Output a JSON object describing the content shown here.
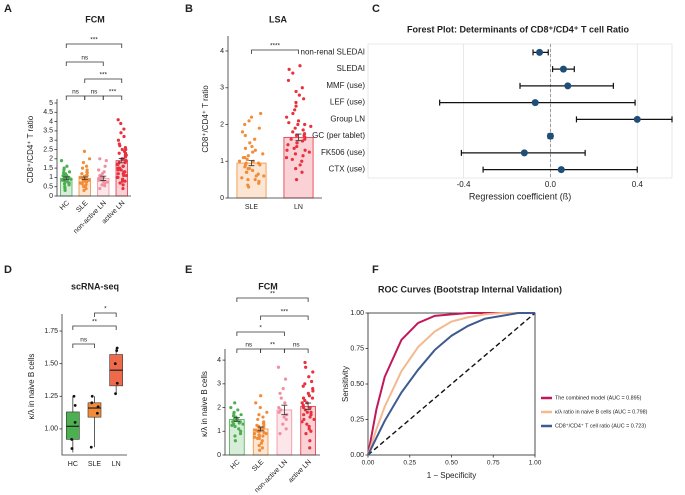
{
  "chart_data": [
    {
      "type": "bar_dot",
      "panel": "A",
      "title": "FCM",
      "ylabel": "CD8⁺/CD4⁺ T ratio",
      "categories": [
        "HC",
        "SLE",
        "non-active LN",
        "active LN"
      ],
      "colors": [
        "#4caf50",
        "#f28c38",
        "#f08fa0",
        "#e8303e"
      ],
      "values": [
        0.95,
        0.95,
        0.95,
        1.9
      ],
      "errors": [
        0.08,
        0.07,
        0.12,
        0.12
      ],
      "points": [
        [
          0.3,
          0.5,
          0.6,
          0.7,
          0.75,
          0.8,
          0.85,
          0.9,
          0.95,
          1.0,
          1.0,
          1.05,
          1.1,
          1.15,
          1.2,
          1.25,
          1.3,
          1.4,
          1.5,
          1.6,
          1.9,
          0.65,
          0.9,
          1.1,
          0.4
        ],
        [
          0.3,
          0.4,
          0.5,
          0.55,
          0.6,
          0.65,
          0.7,
          0.75,
          0.8,
          0.85,
          0.9,
          0.9,
          0.95,
          1.0,
          1.0,
          1.05,
          1.1,
          1.1,
          1.2,
          1.25,
          1.3,
          1.4,
          1.5,
          1.6,
          1.8,
          2.0,
          2.4,
          0.7,
          0.8,
          1.0
        ],
        [
          0.4,
          0.55,
          0.6,
          0.7,
          0.8,
          0.85,
          0.9,
          0.95,
          1.0,
          1.05,
          1.1,
          1.2,
          1.3,
          1.4,
          1.6,
          1.9,
          2.0,
          0.75
        ],
        [
          0.4,
          0.6,
          0.7,
          0.8,
          0.9,
          1.0,
          1.1,
          1.2,
          1.3,
          1.4,
          1.5,
          1.5,
          1.6,
          1.7,
          1.7,
          1.8,
          1.9,
          2.0,
          2.0,
          2.1,
          2.2,
          2.3,
          2.4,
          2.5,
          2.6,
          2.7,
          2.8,
          3.0,
          3.2,
          3.4,
          3.6,
          3.9,
          4.1,
          1.0,
          1.2,
          1.4,
          1.6,
          1.8,
          2.2,
          2.5,
          0.8,
          1.1,
          1.3,
          1.9,
          2.3
        ]
      ],
      "ylim": [
        0,
        5
      ],
      "yticks": [
        0,
        0.5,
        1,
        1.5,
        2,
        2.5,
        3,
        3.5,
        4,
        4.5,
        5
      ],
      "significance": [
        "***",
        "ns",
        "***",
        "ns",
        "ns",
        "***"
      ]
    },
    {
      "type": "bar_dot",
      "panel": "B",
      "title": "LSA",
      "ylabel": "CD8⁺/CD4⁺ T ratio",
      "categories": [
        "SLE",
        "LN"
      ],
      "colors": [
        "#f28c38",
        "#e8303e"
      ],
      "values": [
        0.95,
        1.65
      ],
      "errors": [
        0.07,
        0.09
      ],
      "points": [
        [
          0.3,
          0.35,
          0.4,
          0.45,
          0.5,
          0.5,
          0.55,
          0.6,
          0.6,
          0.65,
          0.7,
          0.7,
          0.75,
          0.8,
          0.8,
          0.85,
          0.9,
          0.9,
          0.95,
          1.0,
          1.0,
          1.05,
          1.1,
          1.1,
          1.15,
          1.2,
          1.25,
          1.3,
          1.35,
          1.4,
          1.5,
          1.6,
          1.7,
          1.8,
          1.9,
          2.0,
          2.1,
          2.2,
          2.3,
          0.95
        ],
        [
          0.5,
          0.7,
          0.8,
          0.9,
          1.0,
          1.05,
          1.1,
          1.15,
          1.2,
          1.25,
          1.3,
          1.35,
          1.4,
          1.45,
          1.5,
          1.5,
          1.55,
          1.6,
          1.6,
          1.65,
          1.7,
          1.75,
          1.8,
          1.85,
          1.9,
          1.95,
          2.0,
          2.05,
          2.1,
          2.2,
          2.3,
          2.4,
          2.5,
          2.6,
          2.7,
          2.8,
          2.9,
          3.0,
          3.2,
          3.4,
          3.5,
          3.6,
          1.3,
          1.7,
          2.0
        ]
      ],
      "ylim": [
        0,
        4.3
      ],
      "yticks": [
        0,
        1,
        2,
        3,
        4
      ],
      "significance": [
        "****"
      ]
    },
    {
      "type": "forest",
      "panel": "C",
      "title": "Forest Plot: Determinants of CD8⁺/CD4⁺ T cell Ratio",
      "xlabel": "Regression coefficient (ß)",
      "categories": [
        "non-renal SLEDAI",
        "SLEDAI",
        "MMF (use)",
        "LEF (use)",
        "Group LN",
        "GC (per tablet)",
        "FK506 (use)",
        "CTX (use)"
      ],
      "values": [
        -0.05,
        0.06,
        0.08,
        -0.07,
        0.4,
        0.0,
        -0.12,
        0.05
      ],
      "ci_low": [
        -0.08,
        0.01,
        -0.14,
        -0.51,
        0.12,
        -0.01,
        -0.41,
        -0.31
      ],
      "ci_high": [
        -0.01,
        0.11,
        0.29,
        0.39,
        0.56,
        0.01,
        0.16,
        0.4
      ],
      "color": "#1f4e79",
      "xlim": [
        -0.84,
        0.56
      ],
      "xticks": [
        -0.4,
        {
          "value": 0,
          "label": "0.0"
        },
        0.4
      ],
      "grid": true
    },
    {
      "type": "box",
      "panel": "D",
      "title": "scRNA-seq",
      "ylabel": "κ/λ in naive B cells",
      "categories": [
        "HC",
        "SLE",
        "LN"
      ],
      "colors": [
        "#4caf50",
        "#f28c38",
        "#ee6a4a"
      ],
      "boxes": [
        {
          "min": 0.82,
          "q1": 0.92,
          "median": 1.02,
          "q3": 1.13,
          "max": 1.25
        },
        {
          "min": 0.86,
          "q1": 1.09,
          "median": 1.16,
          "q3": 1.2,
          "max": 1.25
        },
        {
          "min": 1.27,
          "q1": 1.33,
          "median": 1.45,
          "q3": 1.57,
          "max": 1.62
        }
      ],
      "points": [
        [
          0.85,
          0.92,
          1.05,
          1.18,
          1.25
        ],
        [
          0.86,
          1.12,
          1.17,
          1.2,
          1.25
        ],
        [
          1.27,
          1.35,
          1.5,
          1.6,
          1.62
        ]
      ],
      "ylim": [
        0.8,
        1.85
      ],
      "yticks": [
        {
          "value": 1,
          "label": "1.00"
        },
        {
          "value": 1.25,
          "label": "1.25"
        },
        {
          "value": 1.5,
          "label": "1.50"
        },
        {
          "value": 1.75,
          "label": "1.75"
        }
      ],
      "significance": [
        "*",
        "**",
        "ns"
      ]
    },
    {
      "type": "bar_dot",
      "panel": "E",
      "title": "FCM",
      "ylabel": "κ/λ in naive B cells",
      "categories": [
        "HC",
        "SLE",
        "non-active LN",
        "active LN"
      ],
      "colors": [
        "#4caf50",
        "#f28c38",
        "#f08fa0",
        "#e8303e"
      ],
      "values": [
        1.5,
        1.1,
        1.9,
        2.05
      ],
      "errors": [
        0.08,
        0.08,
        0.2,
        0.14
      ],
      "points": [
        [
          0.6,
          0.8,
          0.9,
          1.0,
          1.1,
          1.2,
          1.25,
          1.3,
          1.35,
          1.4,
          1.45,
          1.5,
          1.5,
          1.55,
          1.6,
          1.65,
          1.7,
          1.75,
          1.8,
          1.9,
          2.0,
          2.2,
          1.3,
          1.4,
          1.6
        ],
        [
          0.2,
          0.3,
          0.4,
          0.5,
          0.6,
          0.7,
          0.75,
          0.8,
          0.85,
          0.9,
          0.95,
          1.0,
          1.0,
          1.05,
          1.1,
          1.1,
          1.15,
          1.2,
          1.25,
          1.3,
          1.35,
          1.4,
          1.5,
          1.6,
          1.7,
          1.8,
          2.0,
          2.2,
          2.5,
          0.9,
          1.0,
          1.2,
          0.8,
          0.7,
          1.1
        ],
        [
          0.9,
          1.1,
          1.3,
          1.5,
          1.6,
          1.8,
          1.9,
          2.0,
          2.2,
          2.4,
          2.6,
          2.8,
          3.2,
          3.7,
          1.7
        ],
        [
          0.3,
          0.6,
          0.9,
          1.1,
          1.2,
          1.4,
          1.5,
          1.6,
          1.7,
          1.8,
          1.9,
          2.0,
          2.0,
          2.1,
          2.2,
          2.3,
          2.4,
          2.5,
          2.6,
          2.7,
          2.8,
          3.0,
          3.1,
          3.3,
          3.5,
          3.7,
          3.9,
          1.5,
          1.8,
          2.2,
          1.0,
          1.3,
          2.4,
          2.9,
          1.7
        ]
      ],
      "ylim": [
        0,
        4.3
      ],
      "yticks": [
        0,
        1,
        2,
        3,
        4
      ],
      "significance": [
        "**",
        "***",
        "*",
        "ns",
        "**",
        "ns"
      ]
    },
    {
      "type": "line",
      "panel": "F",
      "title": "ROC Curves (Bootstrap Internal Validation)",
      "xlabel": "1 − Specificity",
      "ylabel": "Sensitivity",
      "x": [
        0,
        0.05,
        0.1,
        0.2,
        0.3,
        0.4,
        0.5,
        0.6,
        0.7,
        0.8,
        0.9,
        1
      ],
      "series": [
        {
          "name": "The combined model (AUC = 0.895)",
          "color": "#c2185b",
          "values": [
            0,
            0.32,
            0.55,
            0.81,
            0.93,
            0.98,
            0.99,
            1,
            1,
            1,
            1,
            1
          ]
        },
        {
          "name": "κ/λ ratio in naive B cells (AUC = 0.798)",
          "color": "#f5b98f",
          "values": [
            0,
            0.18,
            0.34,
            0.59,
            0.76,
            0.87,
            0.94,
            0.97,
            0.99,
            1,
            1,
            1
          ]
        },
        {
          "name": "CD8⁺/CD4⁺ T cell ratio (AUC = 0.723)",
          "color": "#3f5a8f",
          "values": [
            0,
            0.12,
            0.24,
            0.44,
            0.6,
            0.74,
            0.84,
            0.91,
            0.96,
            0.98,
            1,
            1
          ]
        }
      ],
      "xlim": [
        0,
        1
      ],
      "ylim": [
        0,
        1
      ],
      "xticks": [
        {
          "value": 0,
          "label": "0.00"
        },
        {
          "value": 0.25,
          "label": "0.25"
        },
        {
          "value": 0.5,
          "label": "0.50"
        },
        {
          "value": 0.75,
          "label": "0.75"
        },
        {
          "value": 1,
          "label": "1.00"
        }
      ],
      "yticks": [
        {
          "value": 0,
          "label": "0.00"
        },
        {
          "value": 0.25,
          "label": "0.25"
        },
        {
          "value": 0.5,
          "label": "0.50"
        },
        {
          "value": 0.75,
          "label": "0.75"
        },
        {
          "value": 1,
          "label": "1.00"
        }
      ]
    }
  ]
}
